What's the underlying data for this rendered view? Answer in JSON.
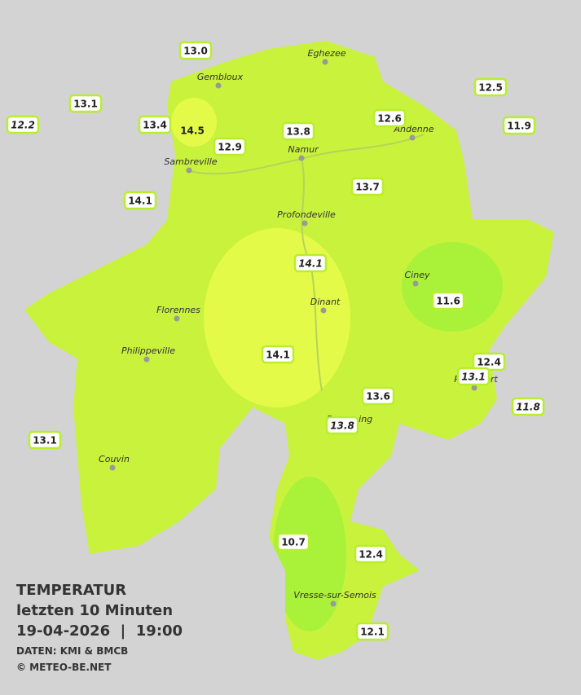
{
  "title": {
    "heading": "TEMPERATUR",
    "period": "letzten 10 Minuten",
    "datetime": "19-04-2026  |  19:00",
    "source": "DATEN: KMI & BMCB",
    "copyright": "© METEO-BE.NET"
  },
  "cities": [
    "Eghezee",
    "Gembloux",
    "Andenne",
    "Namur",
    "Sambreville",
    "Profondeville",
    "Ciney",
    "Dinant",
    "Florennes",
    "Philippeville",
    "Couvin",
    "Beauraing",
    "Rochefort",
    "Vresse-sur-Semois"
  ],
  "stations": [
    {
      "text": "13.0",
      "style": "normal"
    },
    {
      "text": "13.1",
      "style": "normal"
    },
    {
      "text": "12.2",
      "style": "italic"
    },
    {
      "text": "13.4",
      "style": "normal"
    },
    {
      "text": "14.5",
      "style": "plain"
    },
    {
      "text": "12.9",
      "style": "normal"
    },
    {
      "text": "13.8",
      "style": "normal"
    },
    {
      "text": "12.6",
      "style": "normal"
    },
    {
      "text": "12.5",
      "style": "normal"
    },
    {
      "text": "11.9",
      "style": "normal"
    },
    {
      "text": "14.1",
      "style": "normal"
    },
    {
      "text": "13.7",
      "style": "normal"
    },
    {
      "text": "14.1",
      "style": "italic"
    },
    {
      "text": "11.6",
      "style": "normal"
    },
    {
      "text": "14.1",
      "style": "normal"
    },
    {
      "text": "12.4",
      "style": "normal"
    },
    {
      "text": "13.1",
      "style": "italic"
    },
    {
      "text": "11.8",
      "style": "italic"
    },
    {
      "text": "13.6",
      "style": "normal"
    },
    {
      "text": "13.8",
      "style": "italic"
    },
    {
      "text": "13.1",
      "style": "normal"
    },
    {
      "text": "10.7",
      "style": "normal"
    },
    {
      "text": "12.4",
      "style": "normal"
    },
    {
      "text": "12.1",
      "style": "normal"
    }
  ]
}
